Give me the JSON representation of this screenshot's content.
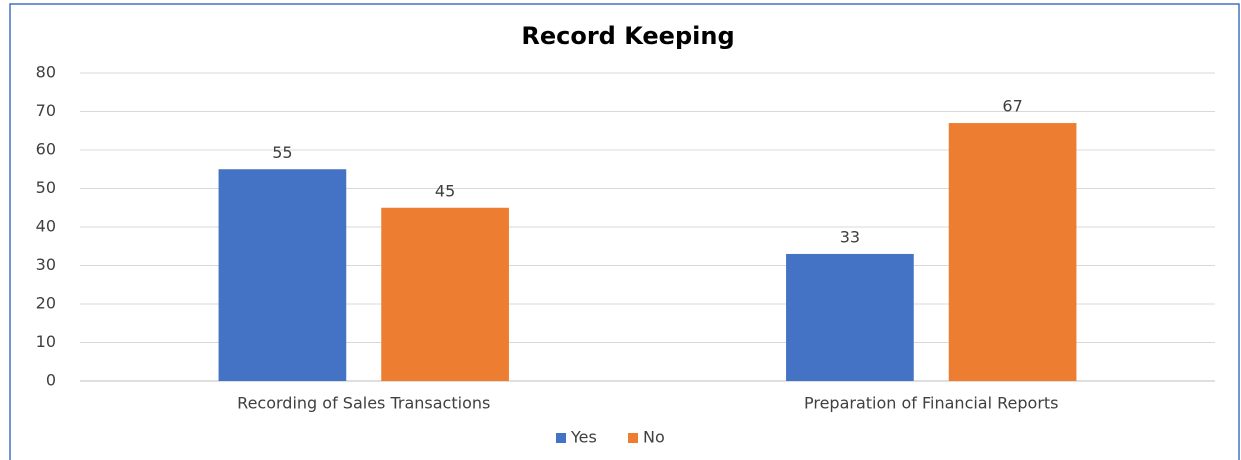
{
  "chart_data": {
    "type": "bar",
    "title": "Record Keeping",
    "categories": [
      "Recording of Sales Transactions",
      "Preparation of Financial Reports"
    ],
    "series": [
      {
        "name": "Yes",
        "color": "#4472c4",
        "values": [
          55,
          33
        ]
      },
      {
        "name": "No",
        "color": "#ed7d31",
        "values": [
          45,
          67
        ]
      }
    ],
    "ylim": [
      0,
      80
    ],
    "yticks": [
      0,
      10,
      20,
      30,
      40,
      50,
      60,
      70,
      80
    ],
    "grid": true,
    "legend": "bottom"
  }
}
